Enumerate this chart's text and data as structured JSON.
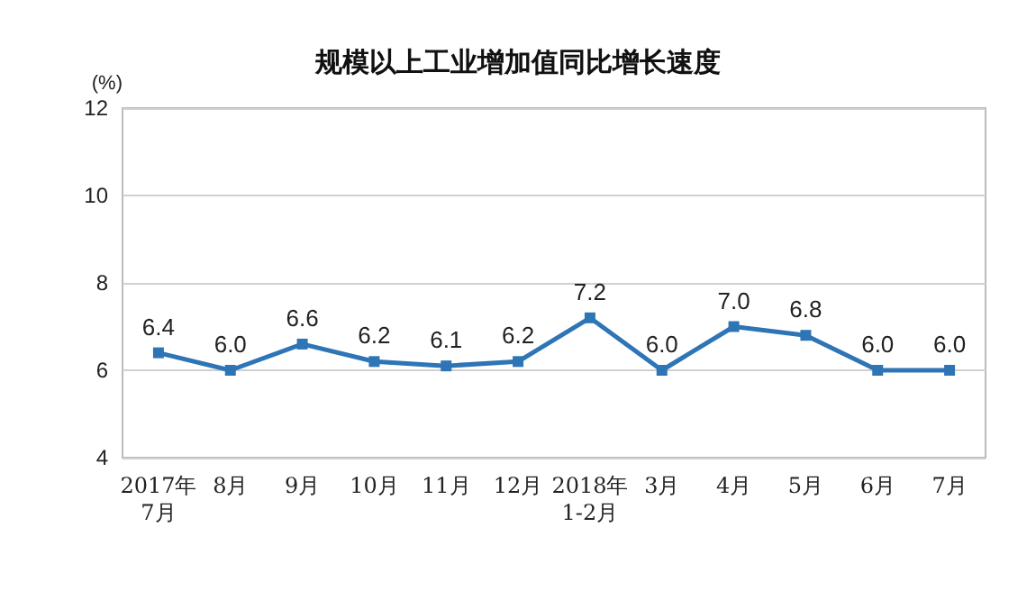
{
  "chart_data": {
    "type": "line",
    "title": "规模以上工业增加值同比增长速度",
    "ylabel": "(%)",
    "categories": [
      "2017年\n7月",
      "8月",
      "9月",
      "10月",
      "11月",
      "12月",
      "2018年\n1-2月",
      "3月",
      "4月",
      "5月",
      "6月",
      "7月"
    ],
    "series": [
      {
        "color": "#2e75b6",
        "values": [
          6.4,
          6.0,
          6.6,
          6.2,
          6.1,
          6.2,
          7.2,
          6.0,
          7.0,
          6.8,
          6.0,
          6.0
        ],
        "value_labels": [
          "6.4",
          "6.0",
          "6.6",
          "6.2",
          "6.1",
          "6.2",
          "7.2",
          "6.0",
          "7.0",
          "6.8",
          "6.0",
          "6.0"
        ]
      }
    ],
    "ylim": [
      4,
      12
    ],
    "yticks": [
      4,
      6,
      8,
      10,
      12
    ],
    "grid": "y",
    "marker": "square",
    "line_style": "solid"
  }
}
